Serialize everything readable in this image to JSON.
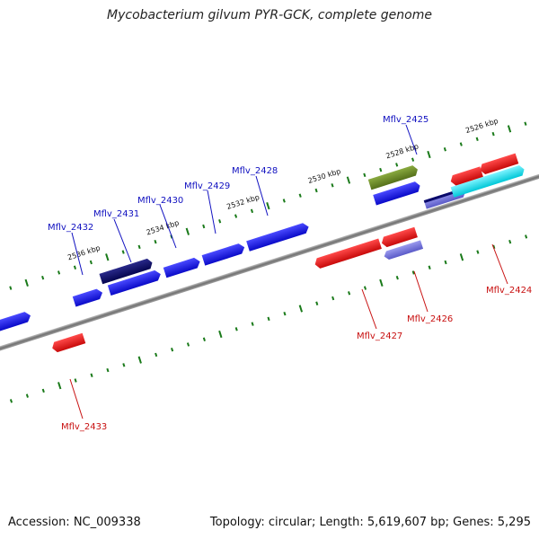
{
  "title": "Mycobacterium gilvum PYR-GCK, complete genome",
  "accession": "Accession: NC_009338",
  "summary": "Topology: circular; Length: 5,619,607 bp; Genes: 5,295",
  "colors": {
    "backbone": "#8a8a8a",
    "tick": "#1a7a1a",
    "gene_blue": "#1010e0",
    "gene_navy": "#0a0a6a",
    "gene_red": "#e01010",
    "gene_olive": "#6a8a20",
    "gene_lavender": "#7070d8",
    "gene_cyan": "#00d8e8",
    "label_forward": "#1010c0",
    "label_reverse": "#c81010"
  },
  "kbp_labels": [
    "2526 kbp",
    "2528 kbp",
    "2530 kbp",
    "2532 kbp",
    "2534 kbp",
    "2536 kbp"
  ],
  "forward_labels": [
    "Mflv_2425",
    "Mflv_2428",
    "Mflv_2429",
    "Mflv_2430",
    "Mflv_2431",
    "Mflv_2432"
  ],
  "reverse_labels": [
    "Mflv_2424",
    "Mflv_2426",
    "Mflv_2427",
    "Mflv_2433"
  ]
}
